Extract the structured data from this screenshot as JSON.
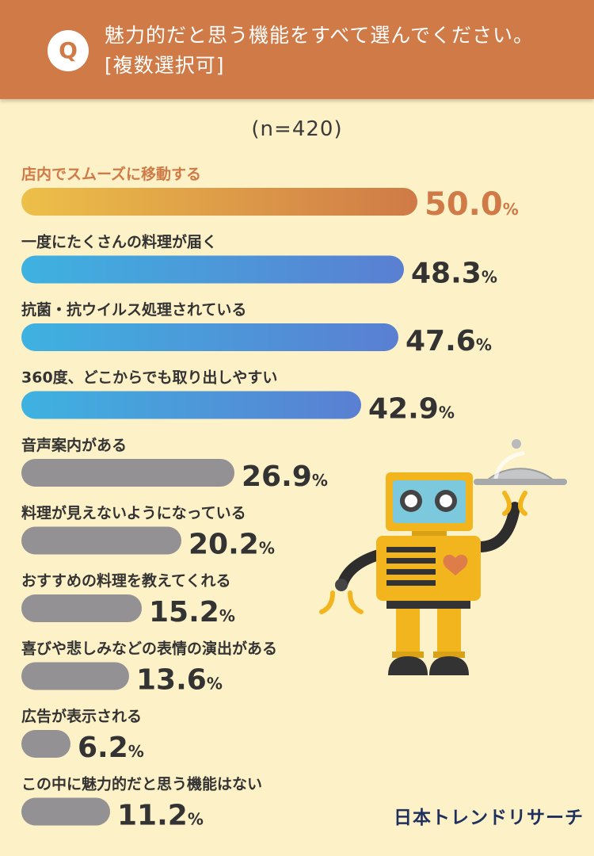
{
  "question": {
    "badge": "Q",
    "line1": "魅力的だと思う機能をすべて選んでください。",
    "line2": "[複数選択可]"
  },
  "sample_size": "(n=420)",
  "brand_logo": "日本トレンドリサーチ",
  "colors": {
    "header": "#cf7a47",
    "background": "#fdf1c7",
    "top_bar_start": "#edc049",
    "top_bar_end": "#cf7a47",
    "blue_bar_start": "#3eb2e0",
    "blue_bar_end": "#5a7fd2",
    "gray_bar": "#939193"
  },
  "chart_data": {
    "type": "bar",
    "orientation": "horizontal",
    "value_suffix": "%",
    "categories": [
      "店内でスムーズに移動する",
      "一度にたくさんの料理が届く",
      "抗菌・抗ウイルス処理されている",
      "360度、どこからでも取り出しやすい",
      "音声案内がある",
      "料理が見えないようになっている",
      "おすすめの料理を教えてくれる",
      "喜びや悲しみなどの表情の演出がある",
      "広告が表示される",
      "この中に魅力的だと思う機能はない"
    ],
    "values": [
      50.0,
      48.3,
      47.6,
      42.9,
      26.9,
      20.2,
      15.2,
      13.6,
      6.2,
      11.2
    ],
    "value_labels": [
      "50.0",
      "48.3",
      "47.6",
      "42.9",
      "26.9",
      "20.2",
      "15.2",
      "13.6",
      "6.2",
      "11.2"
    ],
    "bar_style": [
      "orange",
      "blue",
      "blue",
      "blue",
      "gray",
      "gray",
      "gray",
      "gray",
      "gray",
      "gray"
    ],
    "grid": false,
    "legend": "none"
  }
}
